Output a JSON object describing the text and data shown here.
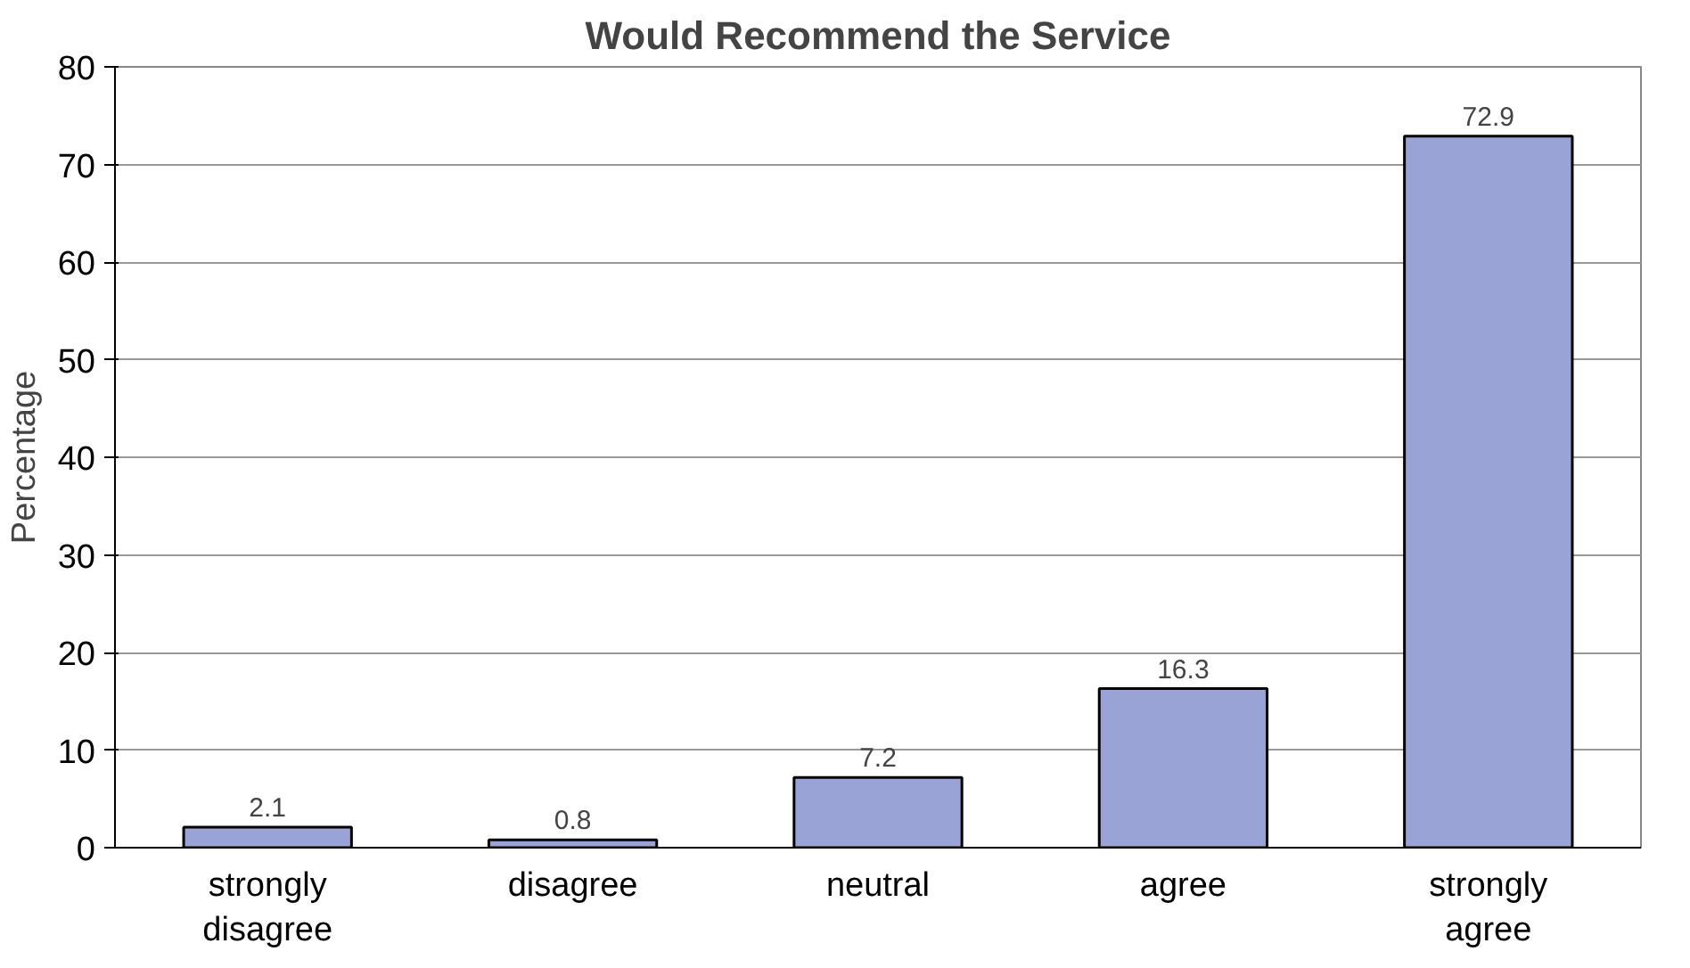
{
  "chart_data": {
    "type": "bar",
    "title": "Would Recommend the Service",
    "ylabel": "Percentage",
    "categories": [
      "strongly disagree",
      "disagree",
      "neutral",
      "agree",
      "strongly agree"
    ],
    "values": [
      2.1,
      0.8,
      7.2,
      16.3,
      72.9
    ],
    "color": "#99a3d6",
    "data_labels": true,
    "ylim": [
      0,
      80
    ],
    "yticks": [
      0,
      10,
      20,
      30,
      40,
      50,
      60,
      70,
      80
    ],
    "grid": "y"
  }
}
